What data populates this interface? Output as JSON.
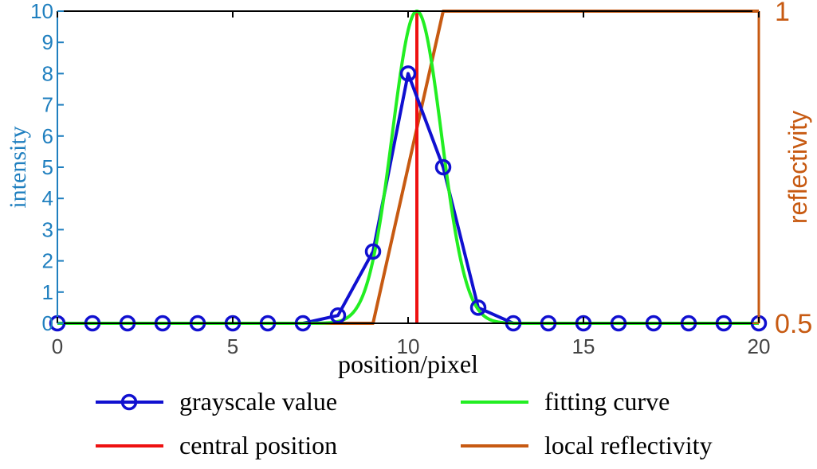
{
  "chart_data": {
    "type": "line",
    "title": "",
    "xlabel": "position/pixel",
    "ylabel_left": "intensity",
    "ylabel_right": "reflectivity",
    "xlim": [
      0,
      20
    ],
    "ylim_left": [
      0,
      10
    ],
    "ylim_right": [
      0.5,
      1
    ],
    "x_ticks": [
      0,
      5,
      10,
      15,
      20
    ],
    "y_left_ticks": [
      0,
      1,
      2,
      3,
      4,
      5,
      6,
      7,
      8,
      9,
      10
    ],
    "y_right_ticks": [
      0.5,
      1
    ],
    "y_right_tick_labels": [
      "0.5",
      "1"
    ],
    "grid": false,
    "legend_placement": "below",
    "series": [
      {
        "name": "grayscale value",
        "axis": "left",
        "color": "#1010d0",
        "marker": "circle",
        "x": [
          0,
          1,
          2,
          3,
          4,
          5,
          6,
          7,
          8,
          9,
          10,
          11,
          12,
          13,
          14,
          15,
          16,
          17,
          18,
          19,
          20
        ],
        "y": [
          0,
          0,
          0,
          0,
          0,
          0,
          0,
          0,
          0.25,
          2.3,
          8,
          5,
          0.5,
          0,
          0,
          0,
          0,
          0,
          0,
          0,
          0
        ]
      },
      {
        "name": "fitting curve",
        "axis": "left",
        "color": "#22ee22",
        "gaussian": {
          "amplitude": 10,
          "center": 10.25,
          "sigma": 0.7
        },
        "x_range": [
          0,
          20
        ]
      },
      {
        "name": "central position",
        "axis": "left",
        "color": "#ee1111",
        "x": [
          10.25,
          10.25
        ],
        "y": [
          0,
          10
        ]
      },
      {
        "name": "local reflectivity",
        "axis": "right",
        "color": "#c75a12",
        "x": [
          0,
          9,
          11,
          20
        ],
        "y": [
          0.5,
          0.5,
          1,
          1
        ]
      }
    ]
  }
}
